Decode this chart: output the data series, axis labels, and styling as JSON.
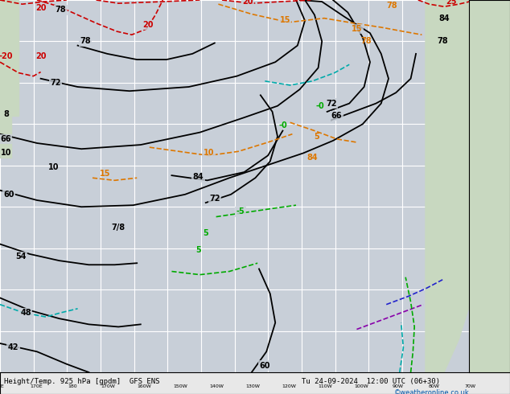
{
  "title": "Height/Temp. 925 hPa [gpdm] GFS ENS",
  "datetime_label": "Tu 24-09-2024 12:00 UTC (06+30)",
  "credit": "©weatheronline.co.uk",
  "map_bg": "#c8cfd8",
  "land_color": "#c8d8c0",
  "grid_color": "#ffffff",
  "bottom_bar_color": "#e8e8e8",
  "figsize": [
    6.34,
    4.9
  ],
  "dpi": 100
}
